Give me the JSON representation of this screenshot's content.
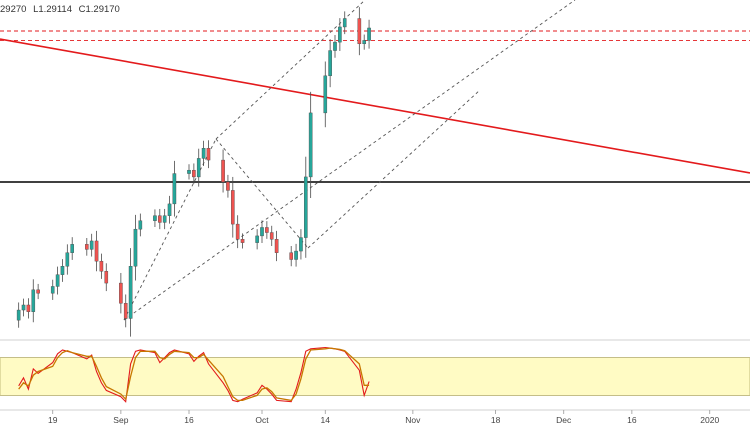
{
  "ohlc_header": {
    "open": "29270",
    "low": "L1.29114",
    "close": "C1.29170"
  },
  "colors": {
    "up": "#26a69a",
    "down": "#ef5350",
    "body_outline": "#4a4a4a",
    "trend_line": "#e31a1c",
    "level_line": "#000000",
    "dashed_level": "#e31a1c",
    "channel": "#555555",
    "osc_band": "#fffbc4",
    "osc_fast": "#e31a1c",
    "osc_slow": "#c77700"
  },
  "chart_data": [
    {
      "type": "candlestick",
      "title": "",
      "x": [
        "2019-08-12",
        "2019-08-13",
        "2019-08-14",
        "2019-08-15",
        "2019-08-16",
        "2019-08-19",
        "2019-08-20",
        "2019-08-21",
        "2019-08-22",
        "2019-08-23",
        "2019-08-26",
        "2019-08-27",
        "2019-08-28",
        "2019-08-29",
        "2019-08-30",
        "2019-09-02",
        "2019-09-03",
        "2019-09-04",
        "2019-09-05",
        "2019-09-06",
        "2019-09-09",
        "2019-09-10",
        "2019-09-11",
        "2019-09-12",
        "2019-09-13",
        "2019-09-16",
        "2019-09-17",
        "2019-09-18",
        "2019-09-19",
        "2019-09-20",
        "2019-09-23",
        "2019-09-24",
        "2019-09-25",
        "2019-09-26",
        "2019-09-27",
        "2019-09-30",
        "2019-10-01",
        "2019-10-02",
        "2019-10-03",
        "2019-10-04",
        "2019-10-07",
        "2019-10-08",
        "2019-10-09",
        "2019-10-10",
        "2019-10-11",
        "2019-10-14",
        "2019-10-15",
        "2019-10-16",
        "2019-10-17",
        "2019-10-18",
        "2019-10-21",
        "2019-10-22",
        "2019-10-23"
      ],
      "close": [
        1.208,
        1.2095,
        1.2075,
        1.214,
        1.213,
        1.215,
        1.2185,
        1.221,
        1.225,
        1.2275,
        1.226,
        1.2285,
        1.2225,
        1.2195,
        1.216,
        1.21,
        1.2055,
        1.221,
        1.232,
        1.2345,
        1.236,
        1.234,
        1.236,
        1.2395,
        1.2485,
        1.2495,
        1.2475,
        1.253,
        1.256,
        1.2525,
        1.246,
        1.2435,
        1.2335,
        1.229,
        1.228,
        1.23,
        1.2325,
        1.231,
        1.229,
        1.225,
        1.223,
        1.2255,
        1.2295,
        1.2475,
        1.2665,
        1.2775,
        1.285,
        1.2875,
        1.292,
        1.2945,
        1.287,
        1.288,
        1.2917
      ],
      "ylim": [
        1.2,
        1.3
      ],
      "overlays": {
        "horizontal_levels": [
          1.246
        ],
        "dashed_levels": [
          1.2908,
          1.288
        ]
      }
    },
    {
      "type": "line",
      "title": "",
      "indicator": "stochastic",
      "ylim": [
        0,
        100
      ],
      "band": [
        20,
        80
      ],
      "series": [
        {
          "values": [
            35,
            48,
            30,
            62,
            55,
            72,
            86,
            92,
            90,
            88,
            78,
            84,
            58,
            40,
            28,
            18,
            10,
            70,
            90,
            92,
            88,
            72,
            80,
            88,
            92,
            86,
            74,
            82,
            88,
            70,
            40,
            28,
            12,
            10,
            14,
            24,
            36,
            30,
            22,
            12,
            10,
            30,
            56,
            90,
            94,
            96,
            95,
            94,
            92,
            90,
            60,
            20,
            42
          ]
        },
        {
          "values": [
            30,
            40,
            35,
            52,
            58,
            66,
            80,
            88,
            91,
            88,
            82,
            82,
            66,
            48,
            34,
            22,
            14,
            50,
            80,
            90,
            90,
            80,
            78,
            85,
            90,
            88,
            80,
            80,
            85,
            76,
            50,
            34,
            18,
            12,
            12,
            20,
            30,
            32,
            26,
            16,
            12,
            22,
            46,
            78,
            92,
            94,
            95,
            94,
            93,
            91,
            70,
            36,
            36
          ]
        }
      ]
    }
  ],
  "x_axis": {
    "ticks": [
      {
        "label": "19",
        "date": "2019-08-19"
      },
      {
        "label": "Sep",
        "date": "2019-09-02"
      },
      {
        "label": "16",
        "date": "2019-09-16"
      },
      {
        "label": "Oct",
        "date": "2019-10-01"
      },
      {
        "label": "14",
        "date": "2019-10-14"
      },
      {
        "label": "Nov",
        "date": "2019-11-01"
      },
      {
        "label": "18",
        "date": "2019-11-18"
      },
      {
        "label": "Dec",
        "date": "2019-12-02"
      },
      {
        "label": "16",
        "date": "2019-12-16"
      },
      {
        "label": "2020",
        "date": "2020-01-01"
      }
    ]
  }
}
